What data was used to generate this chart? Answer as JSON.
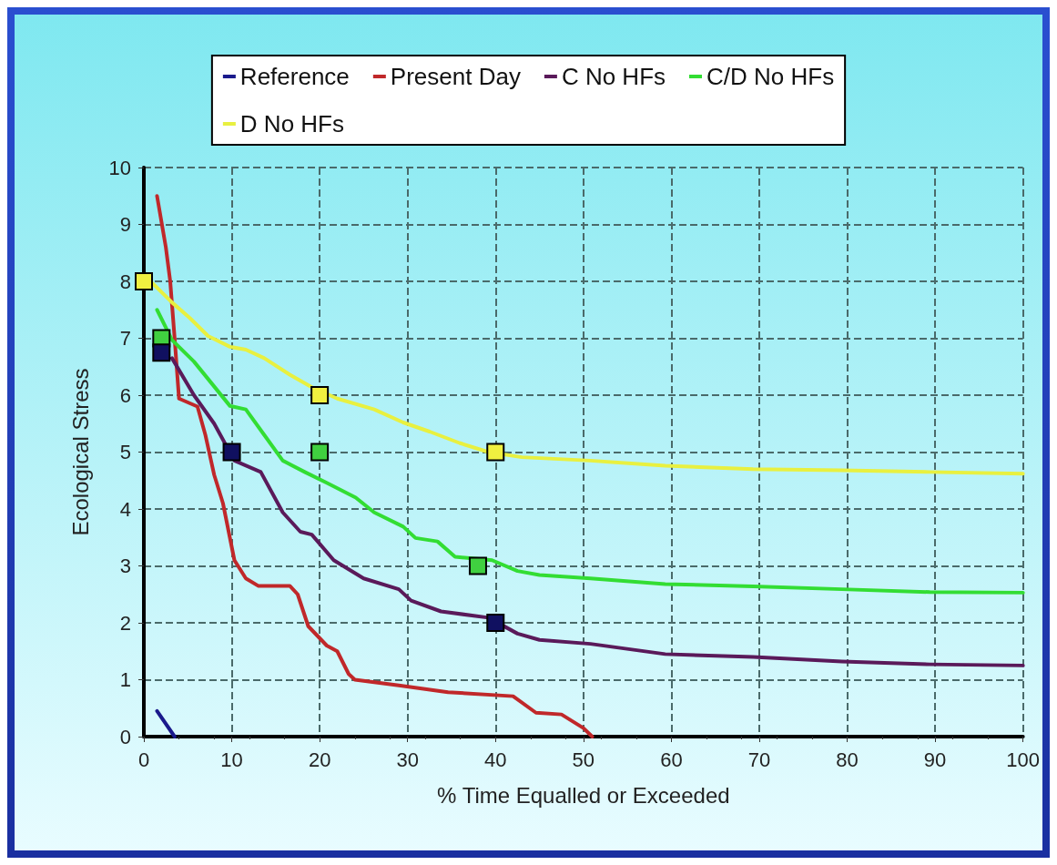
{
  "chart_data": {
    "type": "line",
    "xlabel": "% Time Equalled or Exceeded",
    "ylabel": "Ecological Stress",
    "xlim": [
      0,
      100
    ],
    "xticks": [
      0,
      10,
      20,
      30,
      40,
      50,
      60,
      70,
      80,
      90,
      100
    ],
    "ylim": [
      0,
      10
    ],
    "yticks": [
      0,
      1,
      2,
      3,
      4,
      5,
      6,
      7,
      8,
      9,
      10
    ],
    "grid": true,
    "legend": "top",
    "marker": "none",
    "line_style": "solid",
    "series": [
      {
        "name": "Reference",
        "color": "#1a1a8c",
        "x": [
          1.5,
          3.5
        ],
        "values": [
          0.45,
          0
        ]
      },
      {
        "name": "Present Day",
        "color": "#c0282a",
        "x": [
          1.5,
          2.5,
          3,
          3.5,
          4,
          6.1,
          7,
          8,
          9,
          10.3,
          11.6,
          13,
          16.6,
          17.5,
          18.7,
          20.8,
          22,
          23.3,
          24,
          29,
          34.6,
          42,
          44.6,
          47.5,
          50,
          51
        ],
        "values": [
          9.5,
          8.6,
          8,
          7,
          5.94,
          5.8,
          5.3,
          4.6,
          4.1,
          3.1,
          2.78,
          2.65,
          2.65,
          2.5,
          1.94,
          1.6,
          1.5,
          1.1,
          1.0,
          0.9,
          0.78,
          0.71,
          0.42,
          0.39,
          0.15,
          0
        ]
      },
      {
        "name": "C No HFs",
        "color": "#5a1a5a",
        "x": [
          3.2,
          5.7,
          8,
          10.3,
          13.3,
          15.8,
          17.8,
          19.1,
          21.6,
          25,
          29,
          30.4,
          33.8,
          39.2,
          42.5,
          45,
          50.8,
          59.3,
          69.3,
          79.4,
          89.4,
          100
        ],
        "values": [
          6.65,
          6.0,
          5.5,
          4.85,
          4.65,
          3.94,
          3.6,
          3.55,
          3.1,
          2.78,
          2.59,
          2.39,
          2.2,
          2.09,
          1.81,
          1.7,
          1.63,
          1.45,
          1.4,
          1.32,
          1.27,
          1.25
        ]
      },
      {
        "name": "C/D No HFs",
        "color": "#33dd33",
        "x": [
          1.5,
          3.2,
          5.7,
          9.8,
          11.6,
          13.7,
          15.8,
          18.3,
          20.8,
          24.1,
          26.2,
          29.5,
          30.9,
          33.4,
          35.4,
          39.6,
          42.5,
          45,
          50.8,
          59.3,
          69.3,
          79.4,
          89.4,
          100
        ],
        "values": [
          7.5,
          6.97,
          6.59,
          5.81,
          5.75,
          5.3,
          4.85,
          4.65,
          4.46,
          4.2,
          3.94,
          3.69,
          3.49,
          3.43,
          3.16,
          3.1,
          2.91,
          2.84,
          2.78,
          2.68,
          2.64,
          2.59,
          2.54,
          2.53
        ]
      },
      {
        "name": "D No HFs",
        "color": "#e8f040",
        "x": [
          0,
          1.1,
          3.2,
          5.2,
          7.3,
          9.8,
          11.6,
          13.7,
          16.6,
          19.1,
          22,
          26.2,
          29.5,
          32.5,
          35.9,
          39.2,
          43,
          50.8,
          59.3,
          69.3,
          79.4,
          89.4,
          100
        ],
        "values": [
          8.1,
          7.95,
          7.63,
          7.36,
          7.04,
          6.85,
          6.8,
          6.65,
          6.36,
          6.14,
          5.94,
          5.75,
          5.52,
          5.36,
          5.16,
          5.0,
          4.91,
          4.85,
          4.76,
          4.7,
          4.68,
          4.65,
          4.62
        ]
      },
      {
        "type": "scatter",
        "marker": "square",
        "color": "#f0f040",
        "x": [
          0,
          20,
          40
        ],
        "values": [
          8,
          6,
          5
        ]
      },
      {
        "type": "scatter",
        "marker": "square",
        "color": "#40d040",
        "x": [
          2,
          20,
          38
        ],
        "values": [
          7,
          5,
          3
        ]
      },
      {
        "type": "scatter",
        "marker": "square",
        "color": "#101060",
        "x": [
          2,
          10,
          40
        ],
        "values": [
          6.75,
          5,
          2
        ]
      }
    ]
  }
}
